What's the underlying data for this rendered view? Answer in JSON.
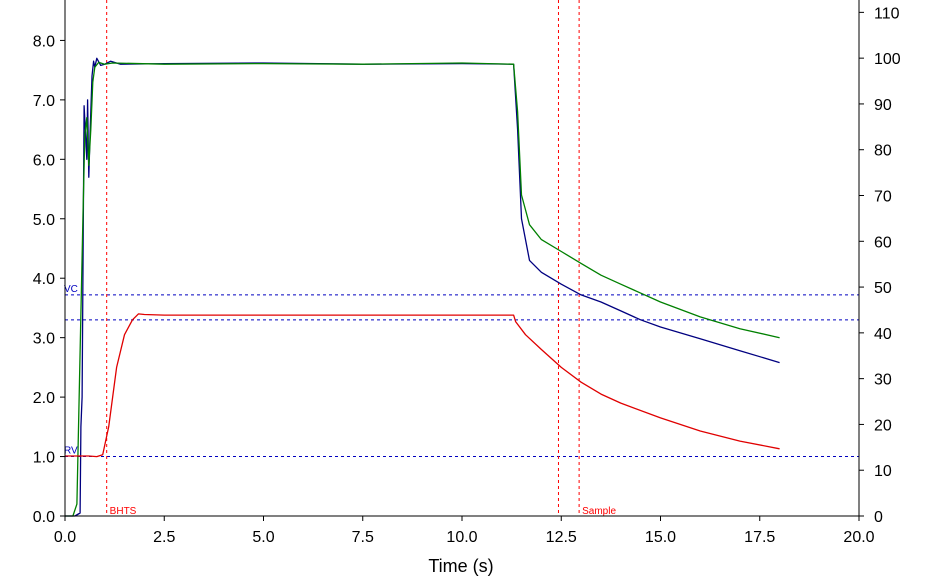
{
  "chart_data": {
    "type": "line",
    "xlabel": "Time (s)",
    "x_ticks": [
      "0.0",
      "2.5",
      "5.0",
      "7.5",
      "10.0",
      "12.5",
      "15.0",
      "17.5",
      "20.0"
    ],
    "xlim": [
      0,
      20
    ],
    "y_left_ticks": [
      "0.0",
      "1.0",
      "2.0",
      "3.0",
      "4.0",
      "5.0",
      "6.0",
      "7.0",
      "8.0"
    ],
    "ylim_left": [
      0,
      8.68
    ],
    "y_right_ticks": [
      "0",
      "10",
      "20",
      "30",
      "40",
      "50",
      "60",
      "70",
      "80",
      "90",
      "100",
      "110"
    ],
    "ylim_right": [
      0,
      112.7
    ],
    "colors": {
      "blue": "#000080",
      "green": "#008000",
      "red": "#e00000",
      "ref_line": "#0000c0",
      "marker": "#ff0000"
    },
    "hlines": [
      {
        "label": "VC",
        "y": 3.72,
        "color": "#0000c0"
      },
      {
        "label": "",
        "y": 3.3,
        "color": "#0000c0"
      },
      {
        "label": "RV",
        "y": 1.0,
        "color": "#0000c0"
      }
    ],
    "vlines": [
      {
        "label": "BHTS",
        "x": 1.05,
        "color": "#ff0000"
      },
      {
        "label": "",
        "x": 12.43,
        "color": "#ff0000"
      },
      {
        "label": "Sample",
        "x": 12.95,
        "color": "#ff0000"
      }
    ],
    "series": [
      {
        "color": "#000080",
        "axis": "left",
        "x": [
          0,
          0.25,
          0.38,
          0.4,
          0.43,
          0.48,
          0.55,
          0.57,
          0.6,
          0.63,
          0.68,
          0.72,
          0.75,
          0.8,
          0.9,
          1.0,
          1.15,
          1.4,
          2.5,
          5.0,
          7.5,
          10.0,
          11.3,
          11.4,
          11.5,
          11.7,
          12.0,
          12.5,
          13.0,
          13.5,
          14.0,
          14.5,
          15.0,
          16.0,
          17.0,
          18.0
        ],
        "y": [
          0,
          0,
          0.05,
          1.5,
          2.0,
          6.9,
          6.0,
          7.0,
          5.7,
          6.4,
          7.4,
          7.65,
          7.55,
          7.7,
          7.58,
          7.6,
          7.65,
          7.6,
          7.61,
          7.62,
          7.6,
          7.61,
          7.6,
          6.5,
          5.0,
          4.3,
          4.1,
          3.9,
          3.72,
          3.6,
          3.45,
          3.3,
          3.18,
          2.98,
          2.78,
          2.58
        ]
      },
      {
        "color": "#008000",
        "axis": "left",
        "x": [
          0,
          0.2,
          0.3,
          0.45,
          0.5,
          0.55,
          0.6,
          0.65,
          0.7,
          0.75,
          0.85,
          1.0,
          1.2,
          2.5,
          5.0,
          7.5,
          10.0,
          11.3,
          11.4,
          11.5,
          11.7,
          12.0,
          12.5,
          13.0,
          13.5,
          14.0,
          15.0,
          16.0,
          17.0,
          18.0
        ],
        "y": [
          0,
          0,
          0.2,
          5.0,
          6.4,
          6.7,
          5.9,
          6.5,
          7.3,
          7.55,
          7.63,
          7.6,
          7.62,
          7.6,
          7.61,
          7.6,
          7.62,
          7.6,
          6.8,
          5.4,
          4.9,
          4.65,
          4.45,
          4.25,
          4.05,
          3.9,
          3.6,
          3.35,
          3.15,
          3.0
        ]
      },
      {
        "color": "#e00000",
        "axis": "left",
        "x": [
          0,
          0.6,
          0.8,
          0.95,
          1.1,
          1.3,
          1.5,
          1.7,
          1.85,
          2.0,
          2.5,
          5.0,
          7.5,
          10.0,
          11.3,
          11.35,
          11.6,
          12.0,
          12.5,
          13.0,
          13.5,
          14.0,
          15.0,
          16.0,
          17.0,
          18.0
        ],
        "y": [
          1.01,
          1.01,
          1.0,
          1.03,
          1.5,
          2.5,
          3.05,
          3.3,
          3.4,
          3.39,
          3.38,
          3.38,
          3.38,
          3.38,
          3.38,
          3.27,
          3.05,
          2.8,
          2.5,
          2.25,
          2.05,
          1.9,
          1.65,
          1.43,
          1.26,
          1.13
        ]
      }
    ]
  }
}
